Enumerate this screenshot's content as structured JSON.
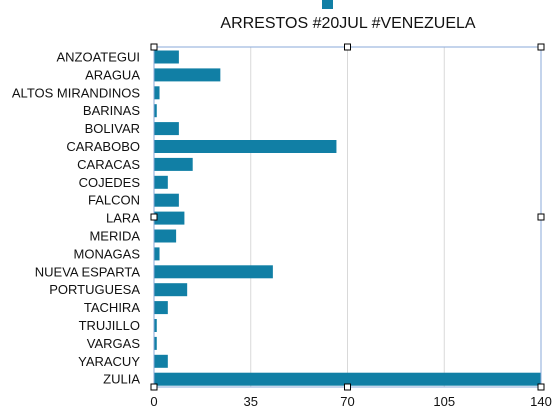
{
  "chart_data": {
    "type": "bar",
    "orientation": "horizontal",
    "title": "ARRESTOS #20JUL #VENEZUELA",
    "categories": [
      "ANZOATEGUI",
      "ARAGUA",
      "ALTOS MIRANDINOS",
      "BARINAS",
      "BOLIVAR",
      "CARABOBO",
      "CARACAS",
      "COJEDES",
      "FALCON",
      "LARA",
      "MERIDA",
      "MONAGAS",
      "NUEVA ESPARTA",
      "PORTUGUESA",
      "TACHIRA",
      "TRUJILLO",
      "VARGAS",
      "YARACUY",
      "ZULIA"
    ],
    "values": [
      9,
      24,
      2,
      1,
      9,
      66,
      14,
      5,
      9,
      11,
      8,
      2,
      43,
      12,
      5,
      1,
      1,
      5,
      140
    ],
    "xlim": [
      0,
      140
    ],
    "xticks": [
      0,
      35,
      70,
      105,
      140
    ],
    "xlabel": "",
    "ylabel": "",
    "grid": "vertical",
    "legend": "top-center",
    "bar_color": "#117FA5",
    "gridline_color": "#d9d9d9",
    "frame_color": "#8aa8d8",
    "selection_handle_color": "#000000"
  }
}
